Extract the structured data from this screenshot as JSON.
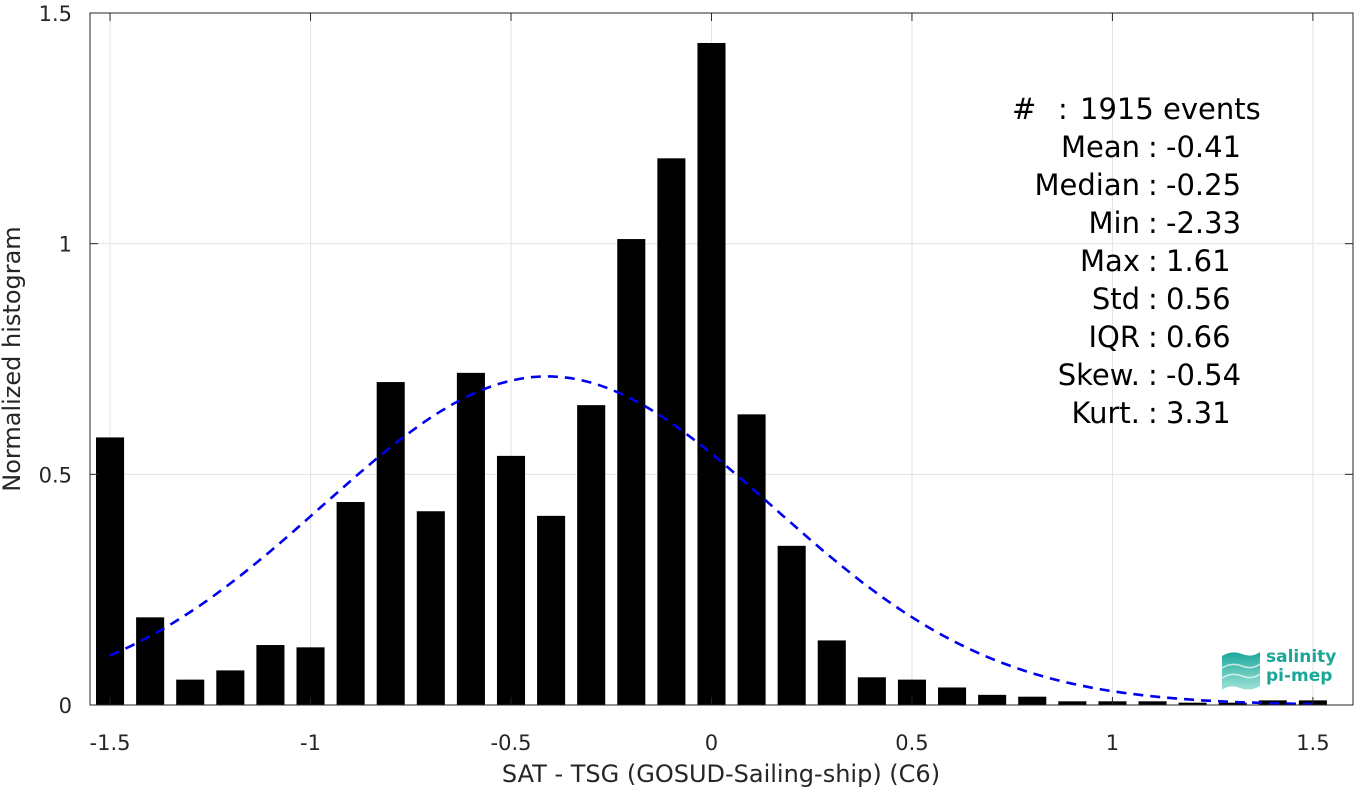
{
  "chart_data": {
    "type": "bar",
    "xlabel": "SAT - TSG (GOSUD-Sailing-ship) (C6)",
    "ylabel": "Normalized histogram",
    "xlim": [
      -1.55,
      1.6
    ],
    "ylim": [
      0,
      1.5
    ],
    "x_ticks": [
      -1.5,
      -1,
      -0.5,
      0,
      0.5,
      1,
      1.5
    ],
    "x_tick_labels": [
      "-1.5",
      "-1",
      "-0.5",
      "0",
      "0.5",
      "1",
      "1.5"
    ],
    "y_ticks": [
      0,
      0.5,
      1,
      1.5
    ],
    "y_tick_labels": [
      "0",
      "0.5",
      "1",
      "1.5"
    ],
    "grid": true,
    "bin_width": 0.1,
    "x": [
      -1.5,
      -1.4,
      -1.3,
      -1.2,
      -1.1,
      -1.0,
      -0.9,
      -0.8,
      -0.7,
      -0.6,
      -0.5,
      -0.4,
      -0.3,
      -0.2,
      -0.1,
      0.0,
      0.1,
      0.2,
      0.3,
      0.4,
      0.5,
      0.6,
      0.7,
      0.8,
      0.9,
      1.0,
      1.1,
      1.2,
      1.3,
      1.4,
      1.5
    ],
    "values": [
      0.58,
      0.19,
      0.055,
      0.075,
      0.13,
      0.125,
      0.44,
      0.7,
      0.42,
      0.72,
      0.54,
      0.41,
      0.65,
      1.01,
      1.185,
      1.435,
      0.63,
      0.345,
      0.14,
      0.06,
      0.055,
      0.038,
      0.022,
      0.018,
      0.008,
      0.008,
      0.008,
      0.005,
      0.005,
      0.01,
      0.01
    ],
    "bar_color": "#000000",
    "fit_curve": {
      "style": "dashed",
      "color": "#0000ee",
      "mean": -0.41,
      "std": 0.56,
      "x_range": [
        -1.5,
        1.5
      ]
    },
    "annotations": {
      "rows": [
        {
          "label": "#  ",
          "value": "1915 events"
        },
        {
          "label": "Mean",
          "value": "-0.41"
        },
        {
          "label": "Median",
          "value": "-0.25"
        },
        {
          "label": "Min",
          "value": "-2.33"
        },
        {
          "label": "Max",
          "value": "1.61"
        },
        {
          "label": "Std",
          "value": "0.56"
        },
        {
          "label": "IQR",
          "value": "0.66"
        },
        {
          "label": "Skew.",
          "value": "-0.54"
        },
        {
          "label": "Kurt.",
          "value": "3.31"
        }
      ]
    }
  },
  "logo": {
    "line1": "salinity",
    "line2": "pi-mep",
    "color": "#1aa79a"
  }
}
